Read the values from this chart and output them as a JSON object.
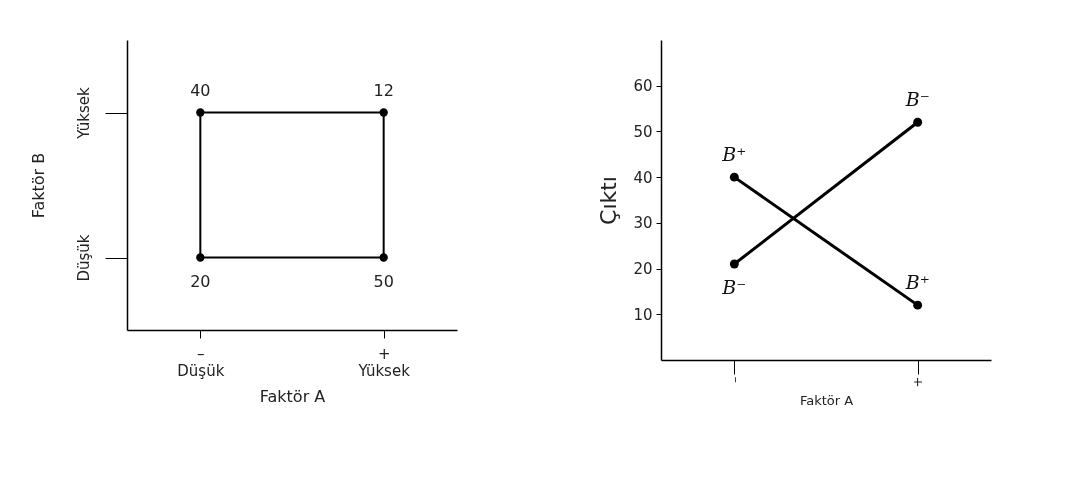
{
  "chart_data": [
    {
      "type": "heatmap",
      "categories": [
        "–\nDüşük",
        "+\nYüksek"
      ],
      "y_categories": [
        "Yüksek",
        "Düşük"
      ],
      "cells": [
        [
          40,
          12
        ],
        [
          20,
          50
        ]
      ],
      "xlabel": "Faktör A",
      "ylabel": "Faktör B",
      "data_labels": true
    },
    {
      "type": "line",
      "categories": [
        "–",
        "+"
      ],
      "series": [
        {
          "name": "B⁺",
          "color": "#000000",
          "values": [
            40,
            12
          ]
        },
        {
          "name": "B⁻",
          "color": "#000000",
          "values": [
            21,
            52
          ]
        }
      ],
      "ylim": [
        0,
        70
      ],
      "yticks": [
        10,
        20,
        30,
        40,
        50,
        60
      ],
      "xlabel": "Faktör A",
      "ylabel": "Çıktı",
      "marker": "circle",
      "grid": false,
      "legend": false,
      "line_style": "solid"
    }
  ]
}
